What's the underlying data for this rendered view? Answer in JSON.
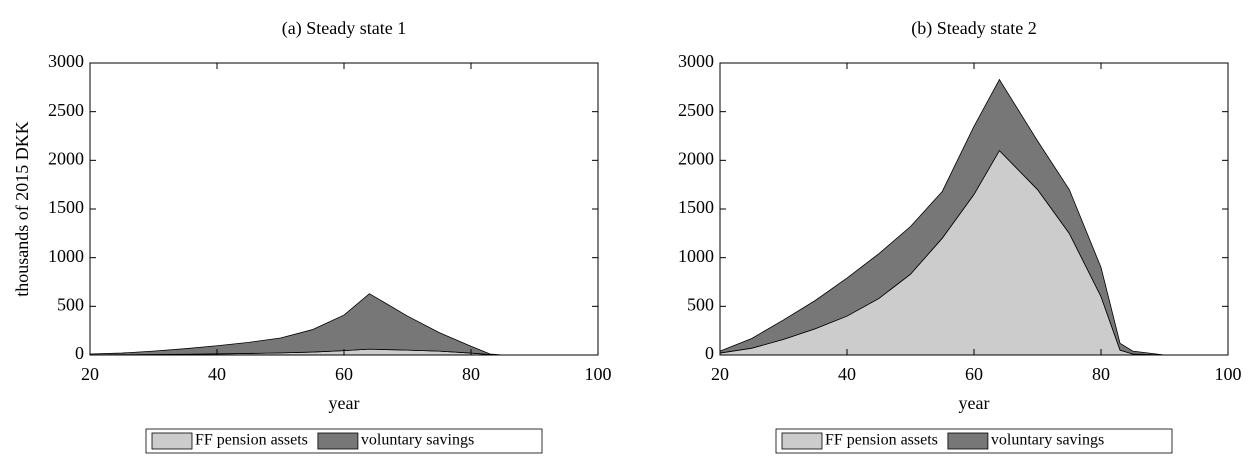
{
  "chart_data": [
    {
      "type": "area",
      "stacked": true,
      "title": "(a) Steady state 1",
      "xlabel": "year",
      "ylabel": "thousands of 2015 DKK",
      "x": [
        20,
        25,
        30,
        35,
        40,
        45,
        50,
        55,
        60,
        64,
        70,
        75,
        80,
        83,
        85,
        90,
        95,
        100
      ],
      "series": [
        {
          "name": "FF pension assets",
          "color": "#cccccc",
          "values": [
            0,
            2,
            5,
            8,
            12,
            16,
            22,
            30,
            45,
            60,
            50,
            40,
            20,
            5,
            0,
            0,
            0,
            0
          ]
        },
        {
          "name": "voluntary savings",
          "color": "#777777",
          "values": [
            10,
            18,
            35,
            57,
            83,
            114,
            153,
            230,
            365,
            570,
            350,
            190,
            70,
            5,
            0,
            0,
            0,
            0
          ]
        }
      ],
      "xlim": [
        20,
        100
      ],
      "ylim": [
        0,
        3000
      ],
      "xticks": [
        20,
        40,
        60,
        80,
        100
      ],
      "yticks": [
        0,
        500,
        1000,
        1500,
        2000,
        2500,
        3000
      ],
      "legend": "bottom"
    },
    {
      "type": "area",
      "stacked": true,
      "title": "(b) Steady state 2",
      "xlabel": "year",
      "x": [
        20,
        25,
        30,
        35,
        40,
        45,
        50,
        55,
        60,
        64,
        70,
        75,
        80,
        83,
        85,
        90,
        95,
        100
      ],
      "series": [
        {
          "name": "FF pension assets",
          "color": "#cccccc",
          "values": [
            20,
            70,
            160,
            270,
            400,
            580,
            830,
            1200,
            1650,
            2100,
            1700,
            1250,
            600,
            50,
            10,
            0,
            0,
            0
          ]
        },
        {
          "name": "voluntary savings",
          "color": "#777777",
          "values": [
            20,
            100,
            200,
            290,
            390,
            460,
            490,
            480,
            700,
            730,
            500,
            450,
            300,
            70,
            30,
            0,
            0,
            0
          ]
        }
      ],
      "xlim": [
        20,
        100
      ],
      "ylim": [
        0,
        3000
      ],
      "xticks": [
        20,
        40,
        60,
        80,
        100
      ],
      "yticks": [
        0,
        500,
        1000,
        1500,
        2000,
        2500,
        3000
      ],
      "legend": "bottom"
    }
  ]
}
